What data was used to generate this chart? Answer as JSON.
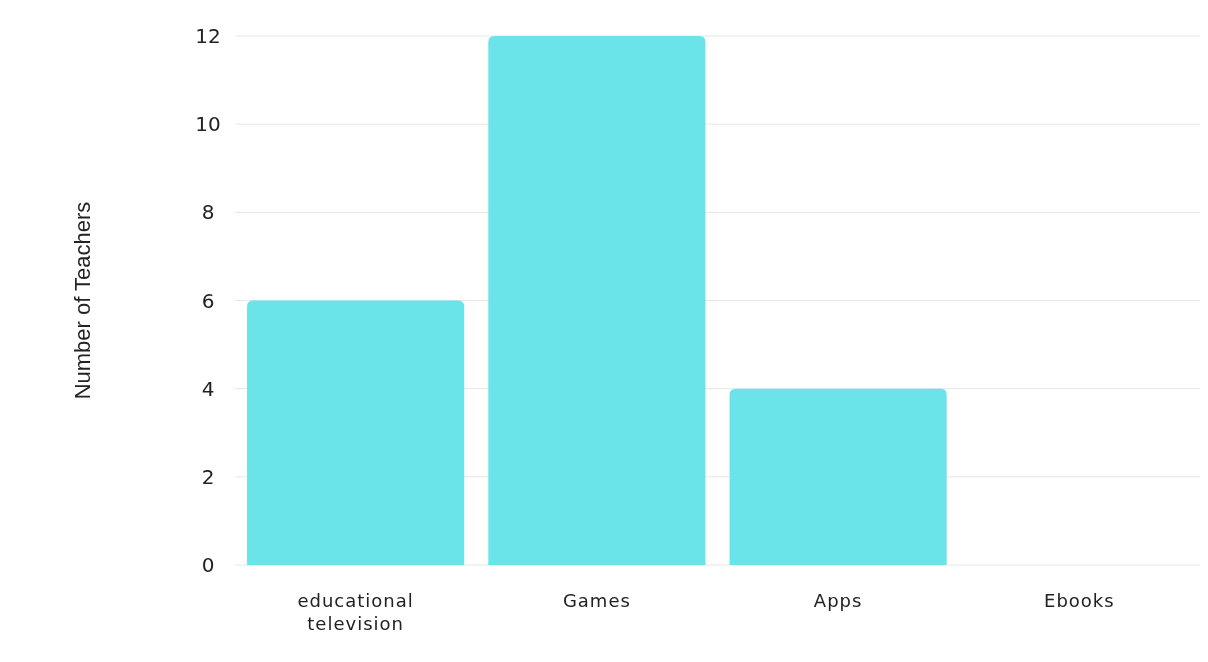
{
  "chart_data": {
    "type": "bar",
    "ylabel": "Number of Teachers",
    "categories": [
      "educational television",
      "Games",
      "Apps",
      "Ebooks"
    ],
    "values": [
      6,
      12,
      4,
      0
    ],
    "color": "#6ae4e9",
    "ylim": [
      0,
      12
    ],
    "yticks": [
      0,
      2,
      4,
      6,
      8,
      10,
      12
    ],
    "grid": "y"
  }
}
